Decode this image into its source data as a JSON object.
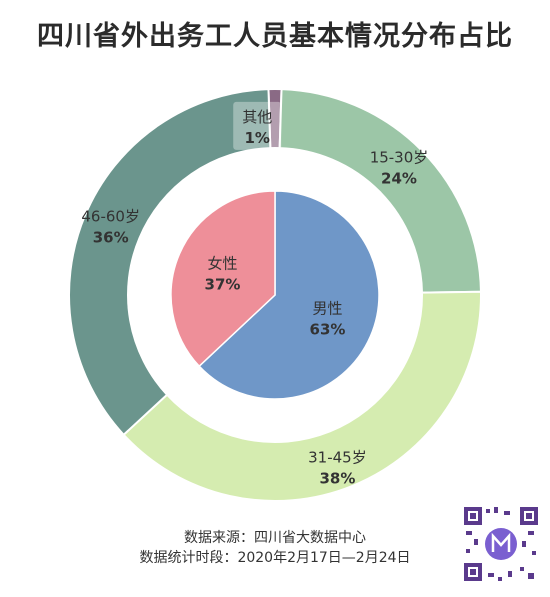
{
  "title": "四川省外出务工人员基本情况分布占比",
  "chart_data": [
    {
      "type": "pie",
      "name": "age",
      "categories": [
        "其他",
        "15-30岁",
        "31-45岁",
        "46-60岁"
      ],
      "values": [
        1,
        24,
        38,
        36
      ],
      "labels": [
        "1%",
        "24%",
        "38%",
        "36%"
      ],
      "colors": [
        "#8a6a85",
        "#9cc6a7",
        "#d5ecb0",
        "#6b958d"
      ]
    },
    {
      "type": "pie",
      "name": "gender",
      "categories": [
        "男性",
        "女性"
      ],
      "values": [
        63,
        37
      ],
      "labels": [
        "63%",
        "37%"
      ],
      "colors": [
        "#6f97c8",
        "#ee8f99"
      ]
    }
  ],
  "source": {
    "line1": "数据来源：四川省大数据中心",
    "line2": "数据统计时段：2020年2月17日—2月24日"
  }
}
